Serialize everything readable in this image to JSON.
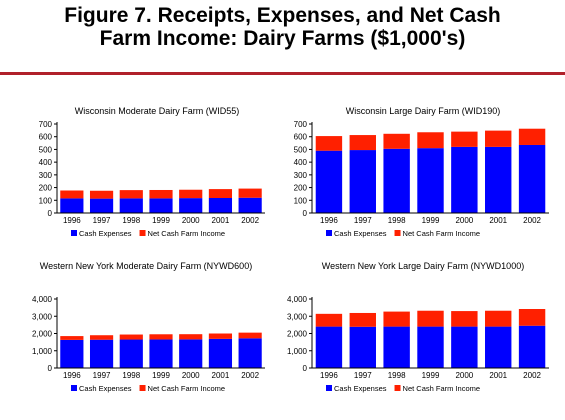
{
  "figure": {
    "title_line1": "Figure 7.  Receipts, Expenses, and Net Cash",
    "title_line2": "Farm Income:  Dairy Farms ($1,000's)"
  },
  "colors": {
    "rule": "#b0202a",
    "cash_expenses": "#0000ff",
    "net_cash_farm_income": "#ff2000"
  },
  "chart_data": [
    {
      "type": "bar",
      "stacked": true,
      "title": "Wisconsin Moderate Dairy Farm (WID55)",
      "categories": [
        "1996",
        "1997",
        "1998",
        "1999",
        "2000",
        "2001",
        "2002"
      ],
      "series": [
        {
          "name": "Cash Expenses",
          "color": "#0000ff",
          "values": [
            115,
            113,
            115,
            115,
            117,
            118,
            120
          ]
        },
        {
          "name": "Net Cash Farm Income",
          "color": "#ff2000",
          "values": [
            62,
            62,
            65,
            66,
            66,
            70,
            72
          ]
        }
      ],
      "yticks": [
        "0",
        "100",
        "200",
        "300",
        "400",
        "500",
        "600",
        "700"
      ],
      "ylim": [
        0,
        700
      ],
      "grid": false,
      "legend": "bottom"
    },
    {
      "type": "bar",
      "stacked": true,
      "title": "Wisconsin Large Dairy Farm (WID190)",
      "categories": [
        "1996",
        "1997",
        "1998",
        "1999",
        "2000",
        "2001",
        "2002"
      ],
      "series": [
        {
          "name": "Cash Expenses",
          "color": "#0000ff",
          "values": [
            490,
            495,
            505,
            510,
            520,
            520,
            535
          ]
        },
        {
          "name": "Net Cash Farm Income",
          "color": "#ff2000",
          "values": [
            115,
            118,
            118,
            125,
            120,
            128,
            128
          ]
        }
      ],
      "yticks": [
        "0",
        "100",
        "200",
        "300",
        "400",
        "500",
        "600",
        "700"
      ],
      "ylim": [
        0,
        700
      ],
      "grid": false,
      "legend": "bottom"
    },
    {
      "type": "bar",
      "stacked": true,
      "title": "Western New York Moderate Dairy Farm (NYWD600)",
      "categories": [
        "1996",
        "1997",
        "1998",
        "1999",
        "2000",
        "2001",
        "2002"
      ],
      "series": [
        {
          "name": "Cash Expenses",
          "color": "#0000ff",
          "values": [
            1630,
            1640,
            1650,
            1655,
            1660,
            1690,
            1720
          ]
        },
        {
          "name": "Net Cash Farm Income",
          "color": "#ff2000",
          "values": [
            220,
            260,
            290,
            300,
            300,
            310,
            330
          ]
        }
      ],
      "yticks": [
        "0",
        "1,000",
        "2,000",
        "3,000",
        "4,000"
      ],
      "ylim": [
        0,
        4000
      ],
      "grid": false,
      "legend": "bottom"
    },
    {
      "type": "bar",
      "stacked": true,
      "title": "Western New York Large Dairy Farm (NYWD1000)",
      "categories": [
        "1996",
        "1997",
        "1998",
        "1999",
        "2000",
        "2001",
        "2002"
      ],
      "series": [
        {
          "name": "Cash Expenses",
          "color": "#0000ff",
          "values": [
            2400,
            2390,
            2400,
            2400,
            2400,
            2400,
            2450
          ]
        },
        {
          "name": "Net Cash Farm Income",
          "color": "#ff2000",
          "values": [
            740,
            800,
            870,
            920,
            900,
            920,
            970
          ]
        }
      ],
      "yticks": [
        "0",
        "1,000",
        "2,000",
        "3,000",
        "4,000"
      ],
      "ylim": [
        0,
        4000
      ],
      "grid": false,
      "legend": "bottom"
    }
  ]
}
